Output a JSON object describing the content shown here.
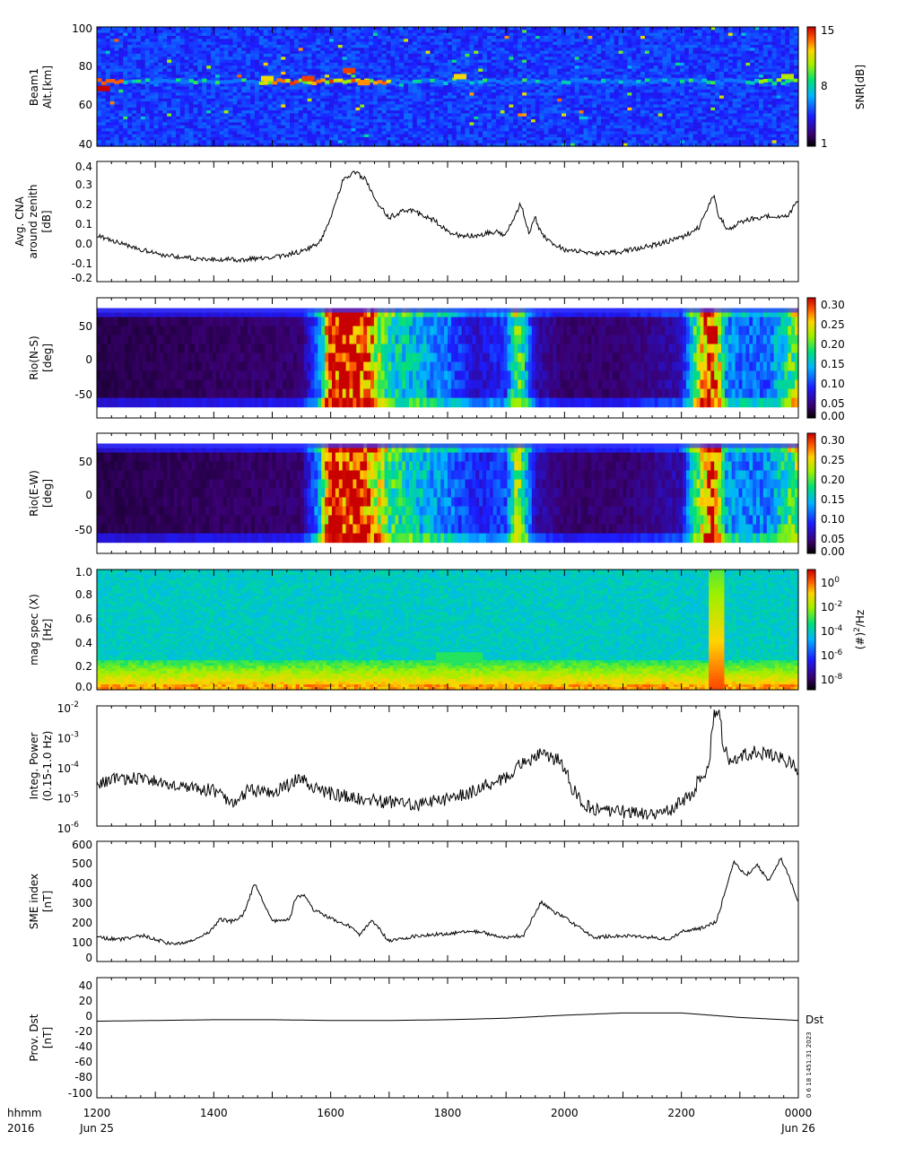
{
  "page": {
    "time_label": "hhmm",
    "year_label": "2016",
    "x_ticks": [
      {
        "value": 0,
        "label": "1200",
        "sub": "Jun 25"
      },
      {
        "value": 2,
        "label": "1400",
        "sub": ""
      },
      {
        "value": 4,
        "label": "1600",
        "sub": ""
      },
      {
        "value": 6,
        "label": "1800",
        "sub": ""
      },
      {
        "value": 8,
        "label": "2000",
        "sub": ""
      },
      {
        "value": 10,
        "label": "2200",
        "sub": ""
      },
      {
        "value": 12,
        "label": "0000",
        "sub": "Jun 26"
      }
    ],
    "stamp": "0  6 18 1451:31 2023"
  },
  "chart_data": [
    {
      "type": "heatmap",
      "ylabel": [
        "Beam1",
        "Alt.[km]"
      ],
      "ylim": [
        40,
        100
      ],
      "yticks": [
        40,
        60,
        80,
        100
      ],
      "colorbar": {
        "label": "SNR[dB]",
        "ticks": [
          "15",
          "8",
          "1"
        ],
        "range": [
          1,
          15
        ],
        "scale": "linear"
      },
      "bands": [
        {
          "altitude": 72,
          "note": "echo layer"
        }
      ],
      "hotspots": [
        {
          "x": 0.1,
          "y": 69,
          "value": 15
        },
        {
          "x": 3.6,
          "y": 74,
          "value": 14
        },
        {
          "x": 4.3,
          "y": 78,
          "value": 14
        },
        {
          "x": 4.55,
          "y": 72,
          "value": 13
        },
        {
          "x": 2.9,
          "y": 74,
          "value": 12
        },
        {
          "x": 6.2,
          "y": 75,
          "value": 12
        },
        {
          "x": 11.8,
          "y": 75,
          "value": 11
        }
      ]
    },
    {
      "type": "line",
      "ylabel": [
        "Avg. CNA",
        "around zenith",
        "[dB]"
      ],
      "ylim": [
        -0.2,
        0.4
      ],
      "yticks": [
        "-0.2",
        "-0.1",
        "0.0",
        "0.1",
        "0.2",
        "0.3",
        "0.4"
      ],
      "x": [
        0,
        0.5,
        1,
        1.5,
        2,
        2.5,
        3,
        3.5,
        3.8,
        4.0,
        4.2,
        4.4,
        4.6,
        4.8,
        5.0,
        5.3,
        5.6,
        5.8,
        6.0,
        6.2,
        6.5,
        6.8,
        7.0,
        7.1,
        7.25,
        7.4,
        7.5,
        7.6,
        7.8,
        8.0,
        8.5,
        9.0,
        9.5,
        10.0,
        10.3,
        10.55,
        10.65,
        10.8,
        11.0,
        11.3,
        11.6,
        11.8,
        12.0
      ],
      "y": [
        0.03,
        -0.02,
        -0.06,
        -0.08,
        -0.09,
        -0.09,
        -0.08,
        -0.05,
        -0.01,
        0.12,
        0.3,
        0.35,
        0.31,
        0.19,
        0.12,
        0.16,
        0.13,
        0.1,
        0.05,
        0.03,
        0.03,
        0.05,
        0.03,
        0.1,
        0.19,
        0.04,
        0.12,
        0.04,
        -0.01,
        -0.04,
        -0.06,
        -0.05,
        -0.02,
        0.02,
        0.07,
        0.23,
        0.12,
        0.06,
        0.1,
        0.12,
        0.13,
        0.12,
        0.21
      ]
    },
    {
      "type": "heatmap",
      "ylabel": [
        "Rio(N-S)",
        "[deg]"
      ],
      "ylim": [
        -70,
        70
      ],
      "yticks": [
        "-50",
        "0",
        "50"
      ],
      "data_range_y": [
        -57,
        58
      ],
      "colorbar": {
        "label": "",
        "ticks": [
          "0.30",
          "0.25",
          "0.20",
          "0.15",
          "0.10",
          "0.05",
          "0.00"
        ],
        "range": [
          0,
          0.3
        ]
      },
      "column_intensity": {
        "x": [
          0,
          3.5,
          3.8,
          4.0,
          4.2,
          4.5,
          5.0,
          5.5,
          6.0,
          6.5,
          7.0,
          7.2,
          7.5,
          8.0,
          9.0,
          10.0,
          10.5,
          10.6,
          10.75,
          11.0,
          11.5,
          12.0
        ],
        "value": [
          0.02,
          0.03,
          0.1,
          0.3,
          0.3,
          0.3,
          0.15,
          0.13,
          0.1,
          0.06,
          0.08,
          0.2,
          0.05,
          0.03,
          0.03,
          0.05,
          0.3,
          0.25,
          0.12,
          0.1,
          0.1,
          0.2
        ]
      }
    },
    {
      "type": "heatmap",
      "ylabel": [
        "Rio(E-W)",
        "[deg]"
      ],
      "ylim": [
        -70,
        70
      ],
      "yticks": [
        "-50",
        "0",
        "50"
      ],
      "data_range_y": [
        -57,
        58
      ],
      "colorbar": {
        "label": "",
        "ticks": [
          "0.30",
          "0.25",
          "0.20",
          "0.15",
          "0.10",
          "0.05",
          "0.00"
        ],
        "range": [
          0,
          0.3
        ]
      },
      "column_intensity": {
        "x": [
          0,
          3.5,
          3.8,
          4.0,
          4.2,
          4.5,
          5.0,
          5.5,
          6.0,
          6.5,
          7.0,
          7.2,
          7.5,
          8.0,
          9.0,
          10.0,
          10.5,
          10.6,
          10.75,
          11.0,
          11.5,
          12.0
        ],
        "value": [
          0.02,
          0.03,
          0.12,
          0.3,
          0.3,
          0.3,
          0.17,
          0.14,
          0.11,
          0.07,
          0.09,
          0.22,
          0.05,
          0.03,
          0.03,
          0.05,
          0.3,
          0.26,
          0.13,
          0.11,
          0.11,
          0.2
        ]
      }
    },
    {
      "type": "heatmap",
      "ylabel": [
        "mag spec (X)",
        "[Hz]"
      ],
      "ylim": [
        0,
        1.0
      ],
      "yticks": [
        "0.0",
        "0.2",
        "0.4",
        "0.6",
        "0.8",
        "1.0"
      ],
      "colorbar": {
        "label": "(#)^2/Hz",
        "ticks": [
          "10^0",
          "10^-2",
          "10^-4",
          "10^-6",
          "10^-8"
        ],
        "scale": "log"
      },
      "features": [
        {
          "x": 10.6,
          "note": "broadband burst"
        },
        {
          "x": 6.0,
          "y": [
            0.25,
            0.35
          ],
          "note": "band near 0.3 Hz"
        },
        {
          "x": 7.8,
          "y": [
            0.2,
            0.35
          ],
          "note": "enhancement"
        }
      ]
    },
    {
      "type": "line",
      "ylabel": [
        "Integ. Power",
        "(0.15-1.0 Hz)"
      ],
      "yscale": "log",
      "ylim": [
        1e-06,
        0.01
      ],
      "yticks": [
        {
          "base": "10",
          "exp": "-2"
        },
        {
          "base": "10",
          "exp": "-3"
        },
        {
          "base": "10",
          "exp": "-4"
        },
        {
          "base": "10",
          "exp": "-5"
        },
        {
          "base": "10",
          "exp": "-6"
        }
      ],
      "x": [
        0,
        0.5,
        1.0,
        1.5,
        2.0,
        2.3,
        2.6,
        3.0,
        3.3,
        3.5,
        3.7,
        4.0,
        4.5,
        5.0,
        5.5,
        6.0,
        6.5,
        7.0,
        7.3,
        7.6,
        7.9,
        8.1,
        8.3,
        8.6,
        9.0,
        9.5,
        9.8,
        10.2,
        10.4,
        10.5,
        10.6,
        10.7,
        10.8,
        11.0,
        11.3,
        11.6,
        12.0
      ],
      "y": [
        2.5e-05,
        4e-05,
        3e-05,
        2e-05,
        1.5e-05,
        5e-06,
        1.5e-05,
        1.2e-05,
        2.5e-05,
        4e-05,
        2e-05,
        1.2e-05,
        8e-06,
        6e-06,
        5e-06,
        8e-06,
        1.5e-05,
        4e-05,
        0.00012,
        0.00025,
        0.00015,
        2e-05,
        5e-06,
        3e-06,
        3e-06,
        2.5e-06,
        3e-06,
        1e-05,
        6e-05,
        0.0002,
        0.008,
        0.0006,
        0.0001,
        0.0002,
        0.0003,
        0.0002,
        8e-05
      ]
    },
    {
      "type": "line",
      "ylabel": [
        "SME index",
        "[nT]"
      ],
      "ylim": [
        0,
        600
      ],
      "yticks": [
        "0",
        "100",
        "200",
        "300",
        "400",
        "500",
        "600"
      ],
      "x": [
        0,
        0.4,
        0.8,
        1.0,
        1.3,
        1.6,
        1.9,
        2.1,
        2.3,
        2.5,
        2.7,
        3.0,
        3.3,
        3.4,
        3.55,
        3.7,
        3.9,
        4.1,
        4.3,
        4.5,
        4.7,
        5.0,
        5.5,
        6.0,
        6.5,
        7.0,
        7.3,
        7.6,
        7.8,
        8.0,
        8.2,
        8.5,
        9.0,
        9.5,
        9.8,
        10.0,
        10.4,
        10.6,
        10.9,
        11.1,
        11.3,
        11.5,
        11.7,
        11.9,
        12.0
      ],
      "y": [
        120,
        110,
        130,
        110,
        85,
        100,
        140,
        210,
        200,
        230,
        390,
        200,
        210,
        320,
        330,
        260,
        230,
        200,
        180,
        130,
        210,
        100,
        130,
        140,
        150,
        120,
        130,
        300,
        250,
        220,
        180,
        120,
        130,
        120,
        110,
        150,
        170,
        200,
        500,
        430,
        480,
        400,
        520,
        380,
        300
      ]
    },
    {
      "type": "line",
      "ylabel": [
        "Prov. Dst",
        "[nT]"
      ],
      "ylim": [
        -110,
        50
      ],
      "yticks": [
        "-100",
        "-80",
        "-60",
        "-40",
        "-20",
        "0",
        "20",
        "40"
      ],
      "legend": [
        "Dst"
      ],
      "x": [
        0,
        1,
        2,
        3,
        4,
        5,
        6,
        7,
        8,
        9,
        10,
        11,
        12
      ],
      "y": [
        -8,
        -7,
        -6,
        -6,
        -7,
        -7,
        -6,
        -4,
        0,
        3,
        3,
        -3,
        -7
      ]
    }
  ]
}
